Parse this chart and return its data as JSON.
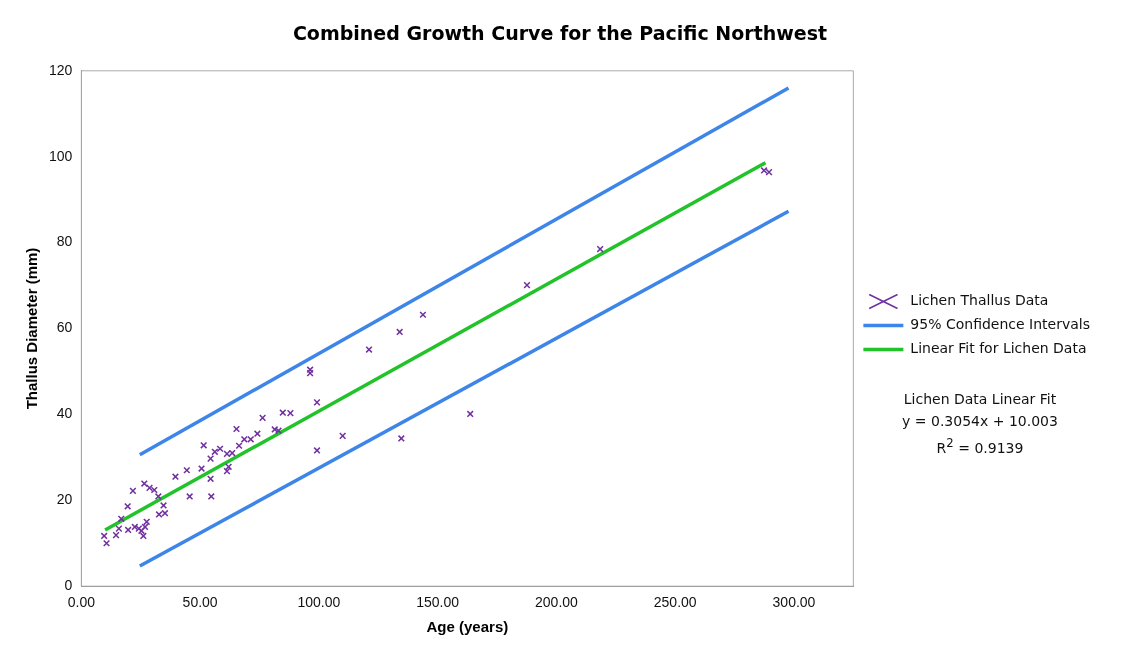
{
  "chart_data": {
    "type": "scatter",
    "title": "Combined Growth Curve for the Pacific Northwest",
    "xlabel": "Age (years)",
    "ylabel": "Thallus Diameter (mm)",
    "xlim": [
      0,
      325
    ],
    "xticks": [
      {
        "value": 0,
        "label": "0.00"
      },
      {
        "value": 50,
        "label": "50.00"
      },
      {
        "value": 100,
        "label": "100.00"
      },
      {
        "value": 150,
        "label": "150.00"
      },
      {
        "value": 200,
        "label": "200.00"
      },
      {
        "value": 250,
        "label": "250.00"
      },
      {
        "value": 300,
        "label": "300.00"
      }
    ],
    "ylim": [
      0,
      120
    ],
    "yticks": [
      0,
      20,
      40,
      60,
      80,
      100,
      120
    ],
    "grid": false,
    "legend": "right",
    "annotations": [
      "Lichen Data Linear Fit",
      "y = 0.3054x + 10.003",
      "R$^{2}$ = 0.9139"
    ],
    "series": [
      {
        "name": "Lichen Thallus Data",
        "marker": "cross",
        "color": "#7030a0",
        "x": [
          9.6,
          10.6,
          14.6,
          15.8,
          16.8,
          19.5,
          19.7,
          21.7,
          22.5,
          24.2,
          25.3,
          26.1,
          26.8,
          27.5,
          26.5,
          28.7,
          30.7,
          32.4,
          34.6,
          32.7,
          35.2,
          39.6,
          44.4,
          45.6,
          50.6,
          51.5,
          54.4,
          54.4,
          54.7,
          56.2,
          58.4,
          61.3,
          63.5,
          61.3,
          62.0,
          65.3,
          66.4,
          68.6,
          71.3,
          74.1,
          76.3,
          81.4,
          83.0,
          84.8,
          88.0,
          96.3,
          96.3,
          99.2,
          99.2,
          110.0,
          121.1,
          134.0,
          134.7,
          143.8,
          163.7,
          187.6,
          218.4,
          287.4,
          289.5
        ],
        "values": [
          11.7,
          10.0,
          11.9,
          13.4,
          15.7,
          18.6,
          13.1,
          22.2,
          13.8,
          13.4,
          12.9,
          11.7,
          13.8,
          15.0,
          23.9,
          22.9,
          22.4,
          20.9,
          18.8,
          16.7,
          17.0,
          25.5,
          27.0,
          20.9,
          27.4,
          32.8,
          29.7,
          25.0,
          20.9,
          31.3,
          32.0,
          30.8,
          31.0,
          26.8,
          27.8,
          36.6,
          32.7,
          34.2,
          34.2,
          35.5,
          39.2,
          36.5,
          36.2,
          40.4,
          40.3,
          49.6,
          50.4,
          42.8,
          31.6,
          35.0,
          55.1,
          59.2,
          34.4,
          63.2,
          40.1,
          70.1,
          78.5,
          96.8,
          96.4
        ]
      },
      {
        "name": "95% Confidence Intervals",
        "type": "line",
        "marker": "none",
        "color": "#3d85e8",
        "x": [
          24.6,
          297.7
        ],
        "values": [
          30.6,
          116.0
        ]
      },
      {
        "type": "line",
        "marker": "none",
        "color": "#3d85e8",
        "x": [
          24.6,
          297.7
        ],
        "values": [
          4.7,
          87.3
        ]
      },
      {
        "name": "Linear Fit for Lichen Data",
        "type": "line",
        "marker": "none",
        "color": "#22c32a",
        "x": [
          10,
          288
        ],
        "values": [
          13.1,
          98.6
        ]
      }
    ]
  }
}
